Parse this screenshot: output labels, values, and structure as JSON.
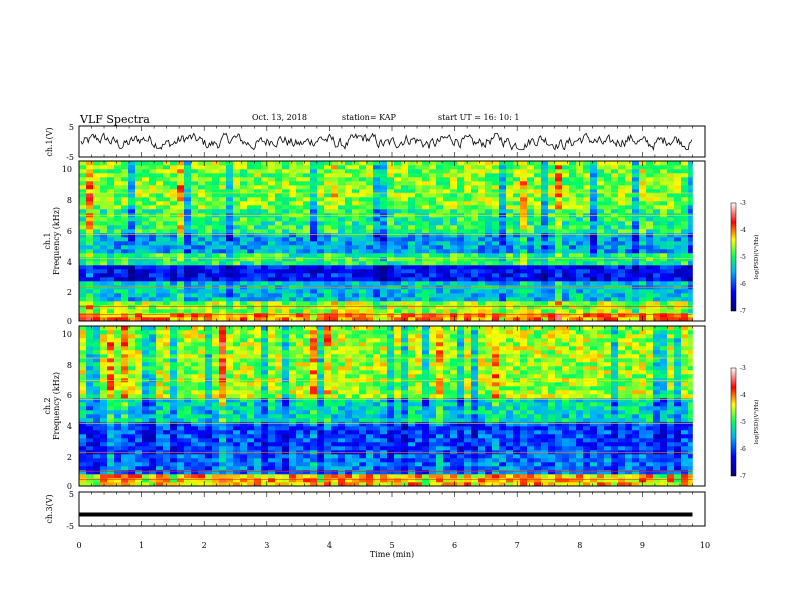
{
  "header": {
    "title": "VLF Spectra",
    "date": "Oct. 13, 2018",
    "station": "station= KAP",
    "start": "start  UT =   16: 10: 1"
  },
  "chart_data": [
    {
      "type": "line",
      "panel": "ch1-waveform",
      "ylabel": "ch.1(V)",
      "ylim": [
        -5,
        5
      ],
      "yticks": [
        "5",
        "-5"
      ],
      "xlim": [
        0,
        10
      ],
      "series": [
        {
          "color": "#000000",
          "behavior": "noisy signal oscillating roughly between -2 and 2 V"
        }
      ]
    },
    {
      "type": "heatmap",
      "panel": "ch1-spectrogram",
      "ylabel": "ch.1\nFrequency (kHz)",
      "ylim": [
        0,
        10
      ],
      "yticks": [
        "0",
        "2",
        "4",
        "6",
        "8",
        "10"
      ],
      "xlim": [
        0,
        9.8
      ],
      "colorbar": {
        "label": "log(PSD)(V²/Hz)",
        "range": [
          -7,
          -3
        ],
        "ticks": [
          "-3",
          "-4",
          "-5",
          "-6",
          "-7"
        ]
      },
      "dominant_level": "green (about -5) with blue bands near 3 and 5 kHz, red/yellow lines near 0.5 and 2 kHz"
    },
    {
      "type": "heatmap",
      "panel": "ch2-spectrogram",
      "ylabel": "ch.2\nFrequency (kHz)",
      "ylim": [
        0,
        10
      ],
      "yticks": [
        "0",
        "2",
        "4",
        "6",
        "8",
        "10"
      ],
      "xlim": [
        0,
        9.8
      ],
      "colorbar": {
        "label": "log(PSD)(V²/Hz)",
        "range": [
          -7,
          -3
        ],
        "ticks": [
          "-3",
          "-4",
          "-5",
          "-6",
          "-7"
        ]
      },
      "dominant_level": "green/yellow above 5 kHz, blue between 1 and 4 kHz"
    },
    {
      "type": "line",
      "panel": "ch3-waveform",
      "ylabel": "ch.3(V)",
      "ylim": [
        -5,
        5
      ],
      "yticks": [
        "5",
        "-5"
      ],
      "xlim": [
        0,
        10
      ],
      "series": [
        {
          "color": "#000000",
          "y": -1.6,
          "behavior": "flat thick line"
        }
      ]
    }
  ],
  "x_axis": {
    "label": "Time (min)",
    "ticks": [
      "0",
      "1",
      "2",
      "3",
      "4",
      "5",
      "6",
      "7",
      "8",
      "9",
      "10"
    ]
  }
}
